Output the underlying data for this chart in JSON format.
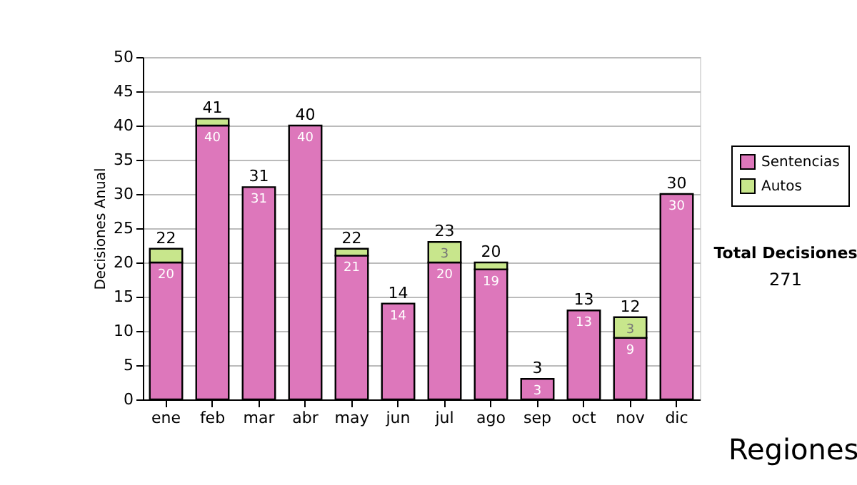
{
  "chart_data": {
    "type": "bar",
    "stacked": true,
    "ylabel": "Decisiones Anual",
    "categories": [
      "ene",
      "feb",
      "mar",
      "abr",
      "may",
      "jun",
      "jul",
      "ago",
      "sep",
      "oct",
      "nov",
      "dic"
    ],
    "series": [
      {
        "name": "Sentencias",
        "color": "#dd77bb",
        "values": [
          20,
          40,
          31,
          40,
          21,
          14,
          20,
          19,
          3,
          13,
          9,
          30
        ],
        "value_labels": [
          "20",
          "40",
          "31",
          "40",
          "21",
          "14",
          "20",
          "19",
          "3",
          "13",
          "9",
          "30"
        ]
      },
      {
        "name": "Autos",
        "color": "#c8e68c",
        "values": [
          2,
          1,
          0,
          0,
          1,
          0,
          3,
          1,
          0,
          0,
          3,
          0
        ],
        "value_labels": [
          null,
          null,
          null,
          null,
          null,
          null,
          "3",
          null,
          null,
          null,
          "3",
          null
        ]
      }
    ],
    "totals": [
      "22",
      "41",
      "31",
      "40",
      "22",
      "14",
      "23",
      "20",
      "3",
      "13",
      "12",
      "30"
    ],
    "ylim": [
      0,
      50
    ],
    "yticks": [
      0,
      5,
      10,
      15,
      20,
      25,
      30,
      35,
      40,
      45,
      50
    ],
    "grid": "y",
    "legend": "right",
    "annotations": [
      "Total Decisiones",
      "271",
      "Regiones"
    ]
  }
}
